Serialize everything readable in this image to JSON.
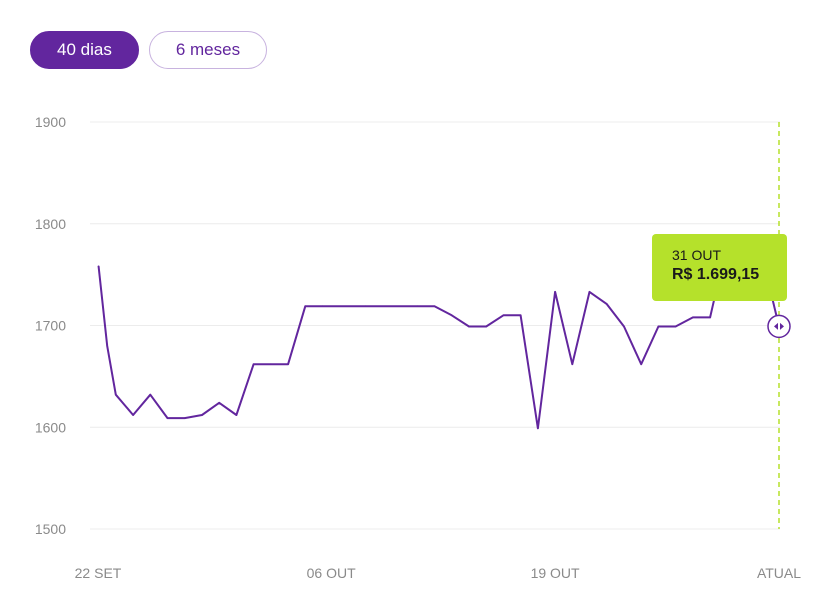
{
  "period_toggle": {
    "options": [
      {
        "label": "40 dias",
        "active": true
      },
      {
        "label": "6 meses",
        "active": false
      }
    ]
  },
  "tooltip": {
    "date": "31 OUT",
    "price": "R$ 1.699,15"
  },
  "colors": {
    "line": "#62269e",
    "accent": "#b5e12b",
    "grid": "#ececec",
    "axis_text": "#8a8a8a"
  },
  "chart_data": {
    "type": "line",
    "title": "",
    "xlabel": "",
    "ylabel": "",
    "ylim": [
      1500,
      1900
    ],
    "yticks": [
      1500,
      1600,
      1700,
      1800,
      1900
    ],
    "xlim": [
      0,
      40
    ],
    "xticks": [
      {
        "x": 0,
        "label": "22 SET"
      },
      {
        "x": 14,
        "label": "06 OUT"
      },
      {
        "x": 27,
        "label": "19 OUT"
      },
      {
        "x": 40,
        "label": "ATUAL"
      }
    ],
    "grid": true,
    "series": [
      {
        "values": [
          [
            0.5,
            1758
          ],
          [
            1,
            1680
          ],
          [
            1.5,
            1632
          ],
          [
            2.5,
            1612
          ],
          [
            3.5,
            1632
          ],
          [
            4.5,
            1609
          ],
          [
            5.5,
            1609
          ],
          [
            6.5,
            1612
          ],
          [
            7.5,
            1624
          ],
          [
            8.5,
            1612
          ],
          [
            9.5,
            1662
          ],
          [
            10.5,
            1662
          ],
          [
            11.5,
            1662
          ],
          [
            12.5,
            1719
          ],
          [
            13.5,
            1719
          ],
          [
            16,
            1719
          ],
          [
            19,
            1719
          ],
          [
            20,
            1719
          ],
          [
            21,
            1710
          ],
          [
            22,
            1699
          ],
          [
            23,
            1699
          ],
          [
            24,
            1710
          ],
          [
            25,
            1710
          ],
          [
            26,
            1599
          ],
          [
            27,
            1733
          ],
          [
            28,
            1662
          ],
          [
            29,
            1733
          ],
          [
            30,
            1721
          ],
          [
            31,
            1699
          ],
          [
            32,
            1662
          ],
          [
            33,
            1699
          ],
          [
            34,
            1699
          ],
          [
            35,
            1708
          ],
          [
            36,
            1708
          ],
          [
            36.5,
            1745
          ],
          [
            39,
            1770
          ],
          [
            40,
            1699
          ]
        ]
      }
    ],
    "highlight": {
      "x": 40,
      "y": 1699.15
    }
  }
}
